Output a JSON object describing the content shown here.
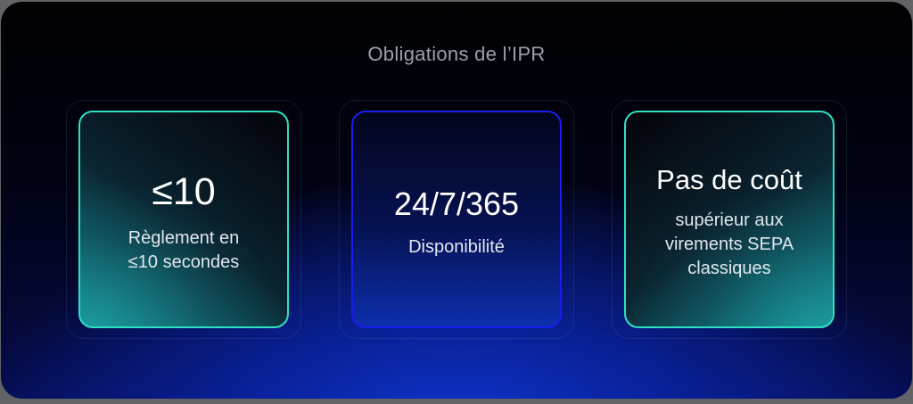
{
  "slide": {
    "title": "Obligations de l’IPR"
  },
  "colors": {
    "teal_accent": "#2ee0c2",
    "blue_accent": "#1b1bf0",
    "background_glow": "#0d38d4",
    "title_text": "#99a1aa",
    "value_text": "#ffffff",
    "label_text": "#e2e7ee"
  },
  "cards": [
    {
      "id": "settlement-time",
      "value": "≤10",
      "label_lines": [
        "Règlement en",
        "≤10 secondes"
      ],
      "accent_color": "#2ee0c2"
    },
    {
      "id": "availability",
      "value": "24/7/365",
      "label_lines": [
        "Disponibilité"
      ],
      "accent_color": "#1b1bf0"
    },
    {
      "id": "cost",
      "value": "Pas de coût",
      "label_lines": [
        "supérieur aux",
        "virements SEPA",
        "classiques"
      ],
      "accent_color": "#2ee0c2"
    }
  ]
}
